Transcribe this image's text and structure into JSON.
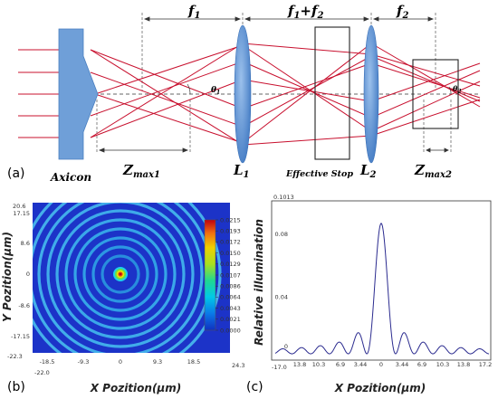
{
  "panel_a": {
    "panel_label": "(a)",
    "dims": {
      "f1": "f",
      "f1_sub": "1",
      "f1f2_a": "f",
      "f1f2_a_sub": "1",
      "f1f2_plus": "+f",
      "f1f2_b_sub": "2",
      "f2": "f",
      "f2_sub": "2"
    },
    "labels": {
      "axicon": "Axicon",
      "zmax1": "Z",
      "zmax1_sub": "max1",
      "l1": "L",
      "l1_sub": "1",
      "effective_stop": "Effective Stop",
      "l2": "L",
      "l2_sub": "2",
      "zmax2": "Z",
      "zmax2_sub": "max2",
      "theta1": "θ",
      "theta1_sub": "1",
      "theta2": "θ",
      "theta2_sub": "2"
    },
    "colors": {
      "rays": "#c8102e",
      "lens": "#5b8fd0",
      "axicon": "#6f9fd8"
    }
  },
  "panel_b": {
    "panel_label": "(b)",
    "ylabel": "Y Pozition(μm)",
    "xlabel": "X Pozition(μm)",
    "corner_top_left": "20.6",
    "corner_bottom_left": "-22.3",
    "corner_x_left": "-22.0",
    "corner_x_right": "24.3",
    "yticks": [
      "17.15",
      "8.6",
      "0",
      "-8.6",
      "-17.15"
    ],
    "xticks": [
      "-18.5",
      "-9.3",
      "0",
      "9.3",
      "18.5"
    ],
    "colorbar_ticks": [
      "0.0215",
      "0.0193",
      "0.0172",
      "0.0150",
      "0.0129",
      "0.0107",
      "0.0086",
      "0.0064",
      "0.0043",
      "0.0021",
      "0.0000"
    ]
  },
  "panel_c": {
    "panel_label": "(c)",
    "ylabel": "Relative illumination",
    "xlabel": "X Pozition(μm)",
    "corner_top": "0.1013",
    "corner_bottom": "-17.0",
    "yticks": [
      "0.08",
      "0.04",
      "0"
    ],
    "xticks": [
      "13.8",
      "10.3",
      "6.9",
      "3.44",
      "0",
      "3.44",
      "6.9",
      "10.3",
      "13.8",
      "17.2"
    ],
    "line_color": "#2b2b8f"
  }
}
